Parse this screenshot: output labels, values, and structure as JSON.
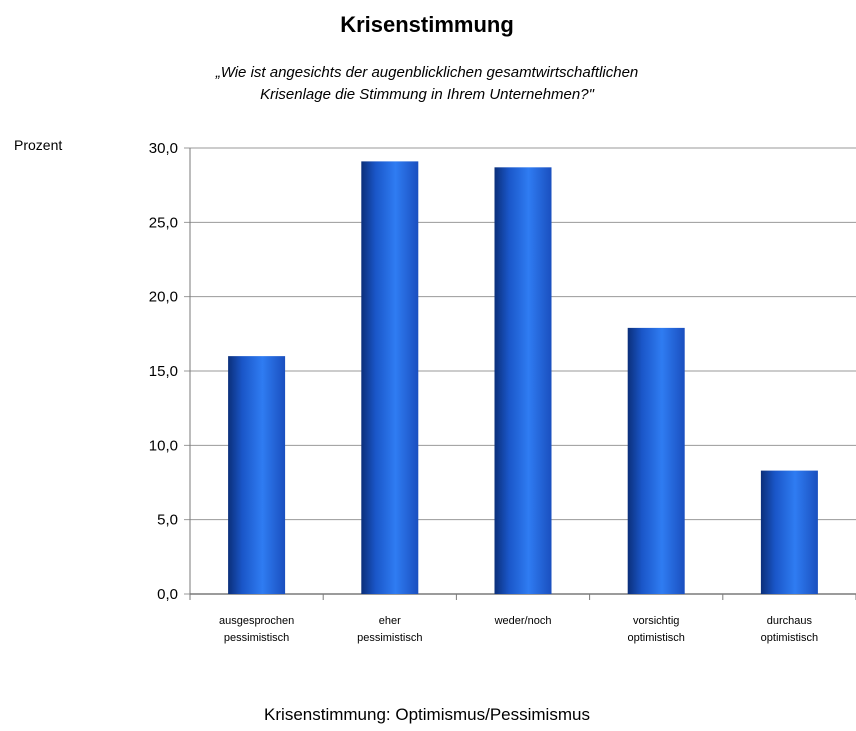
{
  "chart_data": {
    "type": "bar",
    "title": "Krisenstimmung",
    "subtitle_lines": [
      "„Wie ist angesichts der augenblicklichen gesamtwirtschaftlichen",
      "Krisenlage die Stimmung in Ihrem Unternehmen?\""
    ],
    "ylabel": "Prozent",
    "xlabel": "Krisenstimmung: Optimismus/Pessimismus",
    "categories": [
      [
        "ausgesprochen",
        "pessimistisch"
      ],
      [
        "eher",
        "pessimistisch"
      ],
      [
        "weder/noch"
      ],
      [
        "vorsichtig",
        "optimistisch"
      ],
      [
        "durchaus",
        "optimistisch"
      ]
    ],
    "values": [
      16.0,
      29.1,
      28.7,
      17.9,
      8.3
    ],
    "ylim": [
      0,
      30
    ],
    "yticks": [
      "0,0",
      "5,0",
      "10,0",
      "15,0",
      "20,0",
      "25,0",
      "30,0"
    ],
    "grid": true,
    "legend": "none",
    "bar_color": "#1f5fd6"
  }
}
